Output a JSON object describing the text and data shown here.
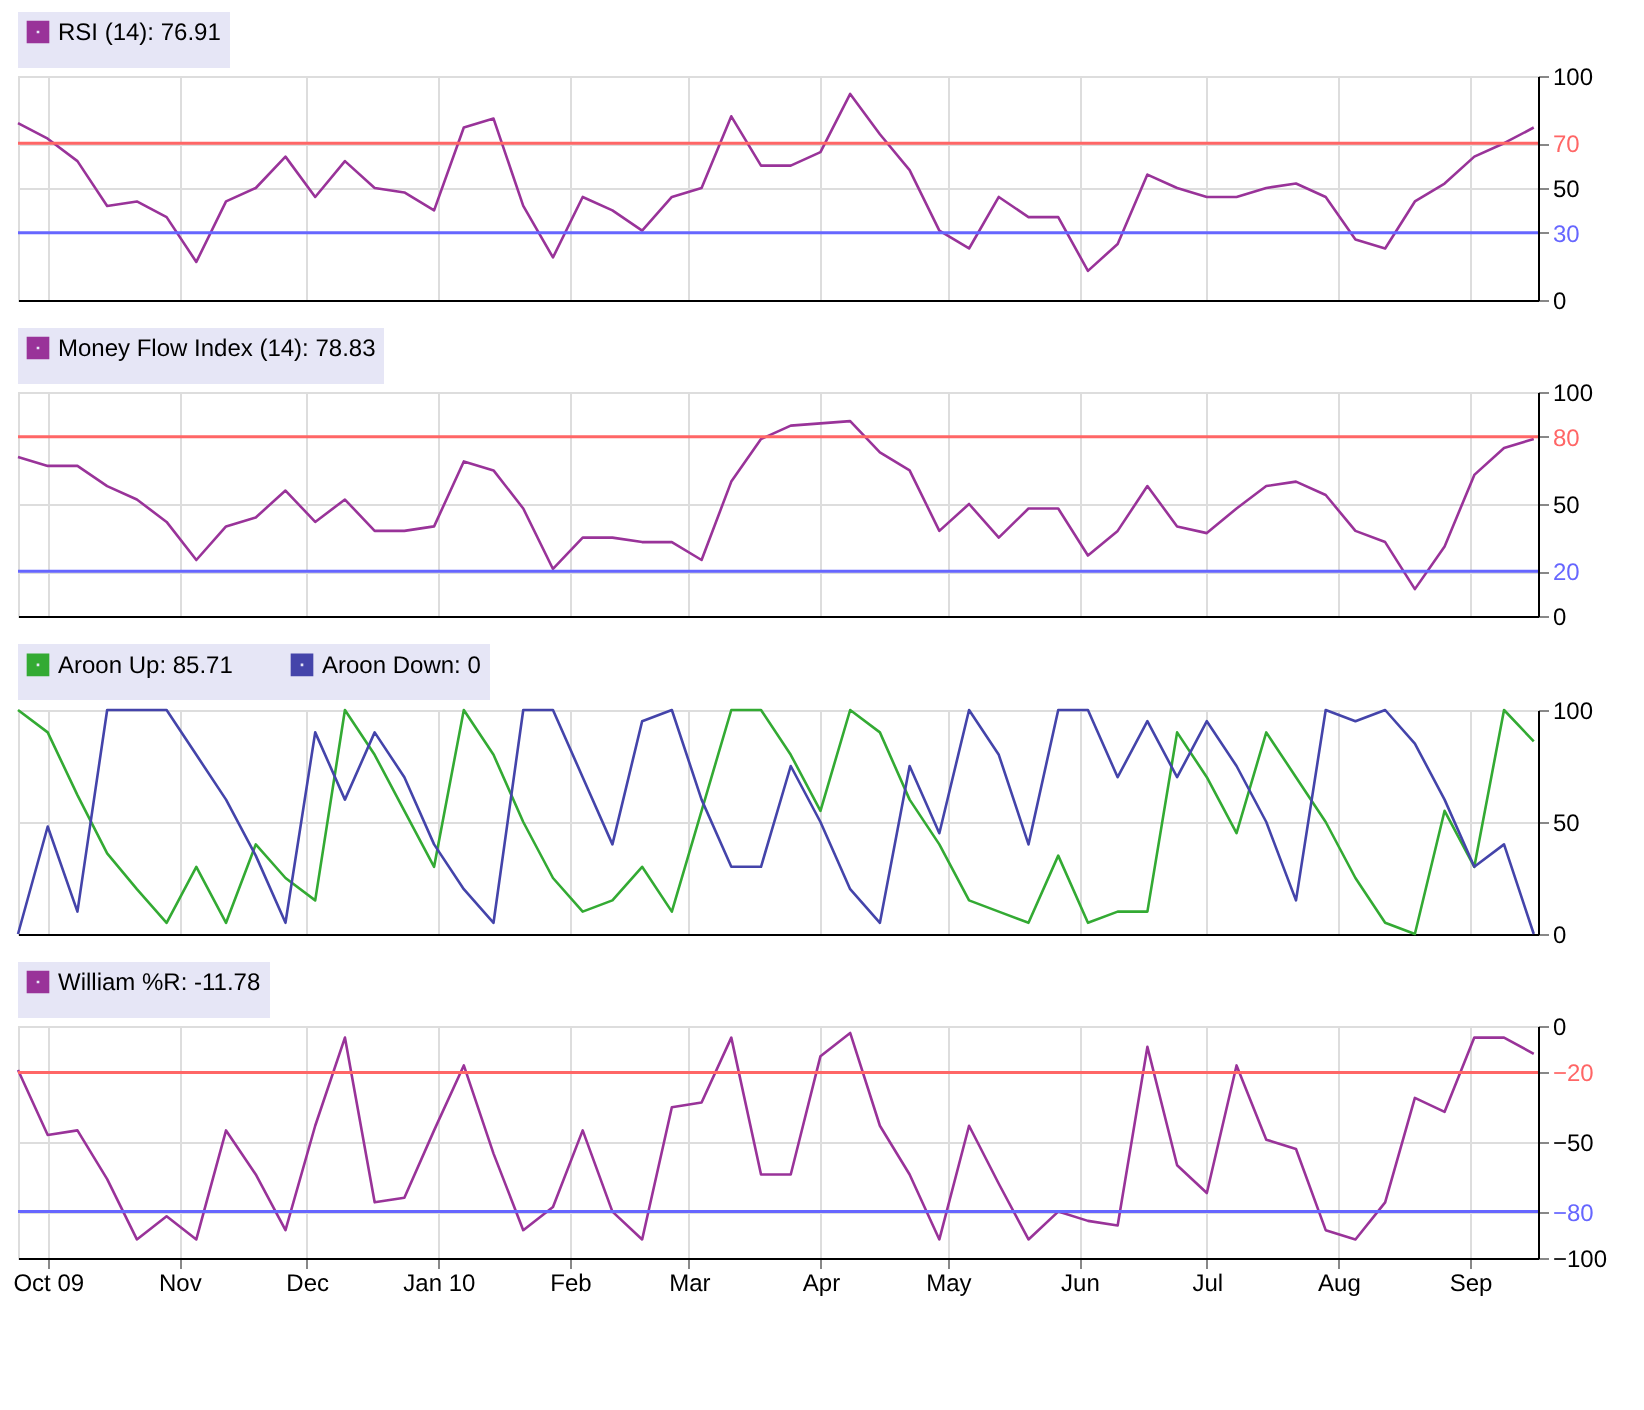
{
  "chart_data": [
    {
      "type": "line",
      "x": [
        "2009-09-24",
        "2009-10-01",
        "2009-10-08",
        "2009-10-15",
        "2009-10-22",
        "2009-10-29",
        "2009-11-05",
        "2009-11-12",
        "2009-11-19",
        "2009-11-26",
        "2009-12-03",
        "2009-12-10",
        "2009-12-17",
        "2009-12-24",
        "2009-12-31",
        "2010-01-07",
        "2010-01-14",
        "2010-01-21",
        "2010-01-28",
        "2010-02-04",
        "2010-02-11",
        "2010-02-18",
        "2010-02-25",
        "2010-03-04",
        "2010-03-11",
        "2010-03-18",
        "2010-03-25",
        "2010-04-01",
        "2010-04-08",
        "2010-04-15",
        "2010-04-22",
        "2010-04-29",
        "2010-05-06",
        "2010-05-13",
        "2010-05-20",
        "2010-05-27",
        "2010-06-03",
        "2010-06-10",
        "2010-06-17",
        "2010-06-24",
        "2010-07-01",
        "2010-07-08",
        "2010-07-15",
        "2010-07-22",
        "2010-07-29",
        "2010-08-05",
        "2010-08-12",
        "2010-08-19",
        "2010-08-26",
        "2010-09-02",
        "2010-09-09",
        "2010-09-16"
      ],
      "series": [
        {
          "name": "RSI (14): 76.91",
          "color": "#993399",
          "values": [
            79,
            72,
            62,
            42,
            44,
            37,
            17,
            44,
            50,
            64,
            46,
            62,
            50,
            48,
            40,
            77,
            81,
            42,
            19,
            46,
            40,
            31,
            46,
            50,
            82,
            60,
            60,
            66,
            92,
            74,
            58,
            31,
            23,
            46,
            37,
            37,
            13,
            25,
            56,
            50,
            46,
            46,
            50,
            52,
            46,
            27,
            23,
            44,
            52,
            64,
            70,
            77
          ]
        }
      ],
      "xlim": [
        "2009-09-24",
        "2010-09-17"
      ],
      "ylim": [
        0,
        100
      ],
      "yticks": [
        0,
        30,
        50,
        70,
        100
      ],
      "ref_lines": [
        {
          "axis": "y",
          "value": 70,
          "color": "#ff6666"
        },
        {
          "axis": "y",
          "value": 30,
          "color": "#6666ff"
        }
      ],
      "grid": true,
      "legend": "top left",
      "tick_labels": "y"
    },
    {
      "type": "line",
      "x": [
        "2009-09-24",
        "2009-10-01",
        "2009-10-08",
        "2009-10-15",
        "2009-10-22",
        "2009-10-29",
        "2009-11-05",
        "2009-11-12",
        "2009-11-19",
        "2009-11-26",
        "2009-12-03",
        "2009-12-10",
        "2009-12-17",
        "2009-12-24",
        "2009-12-31",
        "2010-01-07",
        "2010-01-14",
        "2010-01-21",
        "2010-01-28",
        "2010-02-04",
        "2010-02-11",
        "2010-02-18",
        "2010-02-25",
        "2010-03-04",
        "2010-03-11",
        "2010-03-18",
        "2010-03-25",
        "2010-04-01",
        "2010-04-08",
        "2010-04-15",
        "2010-04-22",
        "2010-04-29",
        "2010-05-06",
        "2010-05-13",
        "2010-05-20",
        "2010-05-27",
        "2010-06-03",
        "2010-06-10",
        "2010-06-17",
        "2010-06-24",
        "2010-07-01",
        "2010-07-08",
        "2010-07-15",
        "2010-07-22",
        "2010-07-29",
        "2010-08-05",
        "2010-08-12",
        "2010-08-19",
        "2010-08-26",
        "2010-09-02",
        "2010-09-09",
        "2010-09-16"
      ],
      "series": [
        {
          "name": "Money Flow Index (14): 78.83",
          "color": "#993399",
          "values": [
            71,
            67,
            67,
            58,
            52,
            42,
            25,
            40,
            44,
            56,
            42,
            52,
            38,
            38,
            40,
            69,
            65,
            48,
            21,
            35,
            35,
            33,
            33,
            25,
            60,
            79,
            85,
            86,
            87,
            73,
            65,
            38,
            50,
            35,
            48,
            48,
            27,
            38,
            58,
            40,
            37,
            48,
            58,
            60,
            54,
            38,
            33,
            12,
            31,
            63,
            75,
            79
          ]
        }
      ],
      "xlim": [
        "2009-09-24",
        "2010-09-17"
      ],
      "ylim": [
        0,
        100
      ],
      "yticks": [
        0,
        20,
        50,
        80,
        100
      ],
      "ref_lines": [
        {
          "axis": "y",
          "value": 80,
          "color": "#ff6666"
        },
        {
          "axis": "y",
          "value": 20,
          "color": "#6666ff"
        }
      ],
      "grid": true,
      "legend": "top left",
      "tick_labels": "y"
    },
    {
      "type": "line",
      "x": [
        "2009-09-24",
        "2009-10-01",
        "2009-10-08",
        "2009-10-15",
        "2009-10-22",
        "2009-10-29",
        "2009-11-05",
        "2009-11-12",
        "2009-11-19",
        "2009-11-26",
        "2009-12-03",
        "2009-12-10",
        "2009-12-17",
        "2009-12-24",
        "2009-12-31",
        "2010-01-07",
        "2010-01-14",
        "2010-01-21",
        "2010-01-28",
        "2010-02-04",
        "2010-02-11",
        "2010-02-18",
        "2010-02-25",
        "2010-03-04",
        "2010-03-11",
        "2010-03-18",
        "2010-03-25",
        "2010-04-01",
        "2010-04-08",
        "2010-04-15",
        "2010-04-22",
        "2010-04-29",
        "2010-05-06",
        "2010-05-13",
        "2010-05-20",
        "2010-05-27",
        "2010-06-03",
        "2010-06-10",
        "2010-06-17",
        "2010-06-24",
        "2010-07-01",
        "2010-07-08",
        "2010-07-15",
        "2010-07-22",
        "2010-07-29",
        "2010-08-05",
        "2010-08-12",
        "2010-08-19",
        "2010-08-26",
        "2010-09-02",
        "2010-09-09",
        "2010-09-16"
      ],
      "series": [
        {
          "name": "Aroon Up: 85.71",
          "color": "#33aa33",
          "values": [
            100,
            90,
            62,
            36,
            20,
            5,
            30,
            5,
            40,
            25,
            15,
            100,
            80,
            55,
            30,
            100,
            80,
            50,
            25,
            10,
            15,
            30,
            10,
            55,
            100,
            100,
            80,
            55,
            100,
            90,
            60,
            40,
            15,
            10,
            5,
            35,
            5,
            10,
            10,
            90,
            70,
            45,
            90,
            70,
            50,
            25,
            5,
            0,
            55,
            30,
            100,
            86
          ]
        },
        {
          "name": "Aroon Down: 0",
          "color": "#4444aa",
          "values": [
            0,
            48,
            10,
            100,
            100,
            100,
            80,
            60,
            35,
            5,
            90,
            60,
            90,
            70,
            40,
            20,
            5,
            100,
            100,
            70,
            40,
            95,
            100,
            60,
            30,
            30,
            75,
            50,
            20,
            5,
            75,
            45,
            100,
            80,
            40,
            100,
            100,
            70,
            95,
            70,
            95,
            75,
            50,
            15,
            100,
            95,
            100,
            85,
            60,
            30,
            40,
            0
          ]
        }
      ],
      "xlim": [
        "2009-09-24",
        "2010-09-17"
      ],
      "ylim": [
        0,
        100
      ],
      "yticks": [
        0,
        50,
        100
      ],
      "grid": true,
      "legend": "top left",
      "tick_labels": "y"
    },
    {
      "type": "line",
      "x": [
        "2009-09-24",
        "2009-10-01",
        "2009-10-08",
        "2009-10-15",
        "2009-10-22",
        "2009-10-29",
        "2009-11-05",
        "2009-11-12",
        "2009-11-19",
        "2009-11-26",
        "2009-12-03",
        "2009-12-10",
        "2009-12-17",
        "2009-12-24",
        "2009-12-31",
        "2010-01-07",
        "2010-01-14",
        "2010-01-21",
        "2010-01-28",
        "2010-02-04",
        "2010-02-11",
        "2010-02-18",
        "2010-02-25",
        "2010-03-04",
        "2010-03-11",
        "2010-03-18",
        "2010-03-25",
        "2010-04-01",
        "2010-04-08",
        "2010-04-15",
        "2010-04-22",
        "2010-04-29",
        "2010-05-06",
        "2010-05-13",
        "2010-05-20",
        "2010-05-27",
        "2010-06-03",
        "2010-06-10",
        "2010-06-17",
        "2010-06-24",
        "2010-07-01",
        "2010-07-08",
        "2010-07-15",
        "2010-07-22",
        "2010-07-29",
        "2010-08-05",
        "2010-08-12",
        "2010-08-19",
        "2010-08-26",
        "2010-09-02",
        "2010-09-09",
        "2010-09-16"
      ],
      "series": [
        {
          "name": "William %R: -11.78",
          "color": "#993399",
          "values": [
            -19,
            -47,
            -45,
            -66,
            -92,
            -82,
            -92,
            -45,
            -64,
            -88,
            -43,
            -5,
            -76,
            -74,
            -45,
            -17,
            -55,
            -88,
            -78,
            -45,
            -80,
            -92,
            -35,
            -33,
            -5,
            -64,
            -64,
            -13,
            -3,
            -43,
            -64,
            -92,
            -43,
            -68,
            -92,
            -80,
            -84,
            -86,
            -9,
            -60,
            -72,
            -17,
            -49,
            -53,
            -88,
            -92,
            -76,
            -31,
            -37,
            -5,
            -5,
            -12
          ]
        }
      ],
      "xlim": [
        "2009-09-24",
        "2010-09-17"
      ],
      "ylim": [
        -100,
        0
      ],
      "yticks": [
        -100,
        -80,
        -50,
        -20,
        0
      ],
      "xticks": [
        {
          "value": "2009-10-01",
          "label": "Oct 09"
        },
        {
          "value": "2009-11-01",
          "label": "Nov"
        },
        {
          "value": "2009-12-01",
          "label": "Dec"
        },
        {
          "value": "2010-01-01",
          "label": "Jan 10"
        },
        {
          "value": "2010-02-01",
          "label": "Feb"
        },
        {
          "value": "2010-03-01",
          "label": "Mar"
        },
        {
          "value": "2010-04-01",
          "label": "Apr"
        },
        {
          "value": "2010-05-01",
          "label": "May"
        },
        {
          "value": "2010-06-01",
          "label": "Jun"
        },
        {
          "value": "2010-07-01",
          "label": "Jul"
        },
        {
          "value": "2010-08-01",
          "label": "Aug"
        },
        {
          "value": "2010-09-01",
          "label": "Sep"
        }
      ],
      "ref_lines": [
        {
          "axis": "y",
          "value": -20,
          "color": "#ff6666"
        },
        {
          "axis": "y",
          "value": -80,
          "color": "#6666ff"
        }
      ],
      "grid": true,
      "legend": "top left"
    }
  ]
}
